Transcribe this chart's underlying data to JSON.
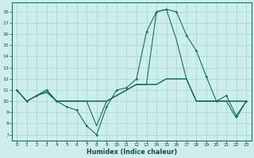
{
  "xlabel": "Humidex (Indice chaleur)",
  "background_color": "#ceeeed",
  "grid_color": "#aadddb",
  "line_color": "#1a6b60",
  "xlim": [
    -0.5,
    23.5
  ],
  "ylim": [
    6.5,
    18.8
  ],
  "xticks": [
    0,
    1,
    2,
    3,
    4,
    5,
    6,
    7,
    8,
    9,
    10,
    11,
    12,
    13,
    14,
    15,
    16,
    17,
    18,
    19,
    20,
    21,
    22,
    23
  ],
  "yticks": [
    7,
    8,
    9,
    10,
    11,
    12,
    13,
    14,
    15,
    16,
    17,
    18
  ],
  "lines": [
    {
      "y": [
        11,
        10,
        10.5,
        11,
        10,
        9.5,
        9.2,
        7.8,
        7.0,
        9.5,
        11,
        11.2,
        12,
        16.2,
        18,
        18.2,
        18,
        15.9,
        14.5,
        12.2,
        10,
        10.5,
        8.7,
        10
      ],
      "has_marker": true
    },
    {
      "y": [
        11,
        10,
        10.5,
        11,
        10,
        10,
        10,
        10,
        7.8,
        10,
        10.5,
        11,
        11.5,
        11.5,
        18,
        18.2,
        15.5,
        12,
        10,
        10,
        10,
        10,
        8.5,
        10
      ],
      "has_marker": false
    },
    {
      "y": [
        11,
        10,
        10.5,
        10.8,
        10,
        10,
        10,
        10,
        10,
        10,
        10.5,
        11,
        11.5,
        11.5,
        11.5,
        12,
        12,
        12,
        10,
        10,
        10,
        10,
        10,
        10
      ],
      "has_marker": false
    },
    {
      "y": [
        11,
        10,
        10.5,
        10.8,
        10,
        10,
        10,
        10,
        10,
        10,
        10.5,
        11,
        11.5,
        11.5,
        11.5,
        12,
        12,
        12,
        10,
        10,
        10,
        10,
        10,
        10
      ],
      "has_marker": false
    }
  ]
}
